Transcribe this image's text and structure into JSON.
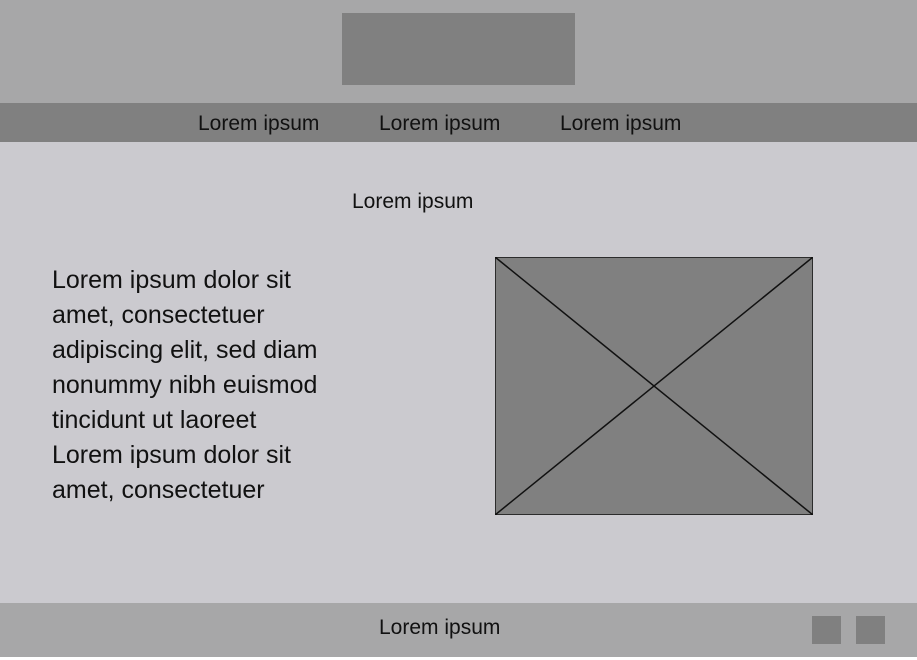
{
  "colors": {
    "header_bg": "#a7a7a8",
    "nav_bg": "#808080",
    "main_bg": "#cbcacf",
    "placeholder": "#808080"
  },
  "nav": {
    "items": [
      {
        "label": "Lorem ipsum"
      },
      {
        "label": "Lorem ipsum"
      },
      {
        "label": "Lorem ipsum"
      }
    ]
  },
  "main": {
    "title": "Lorem ipsum",
    "body_lines": [
      "Lorem ipsum dolor sit",
      "amet, consectetuer",
      "adipiscing elit, sed diam",
      "nonummy nibh euismod",
      "tincidunt ut laoreet",
      "Lorem ipsum dolor sit",
      "amet, consectetuer"
    ]
  },
  "footer": {
    "text": "Lorem ipsum"
  }
}
